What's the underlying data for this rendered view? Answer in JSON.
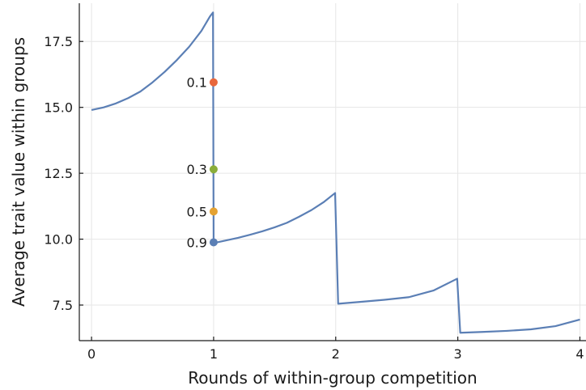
{
  "chart_data": {
    "type": "line",
    "xlabel": "Rounds of within-group competition",
    "ylabel": "Average trait value within groups",
    "xlim": [
      -0.1,
      4.05
    ],
    "ylim": [
      6.15,
      18.95
    ],
    "xticks": [
      0,
      1,
      2,
      3,
      4
    ],
    "xtick_labels": [
      "0",
      "1",
      "2",
      "3",
      "4"
    ],
    "yticks": [
      7.5,
      10.0,
      12.5,
      15.0,
      17.5
    ],
    "ytick_labels": [
      "7.5",
      "10.0",
      "12.5",
      "15.0",
      "17.5"
    ],
    "grid": true,
    "series": [
      {
        "color": "#5b7fb5",
        "points": [
          [
            0.0,
            14.9
          ],
          [
            0.1,
            15.0
          ],
          [
            0.2,
            15.15
          ],
          [
            0.3,
            15.35
          ],
          [
            0.4,
            15.6
          ],
          [
            0.5,
            15.95
          ],
          [
            0.6,
            16.35
          ],
          [
            0.7,
            16.8
          ],
          [
            0.8,
            17.3
          ],
          [
            0.9,
            17.9
          ],
          [
            0.97,
            18.45
          ],
          [
            0.995,
            18.6
          ],
          [
            1.0,
            9.85
          ],
          [
            1.1,
            9.95
          ],
          [
            1.2,
            10.05
          ],
          [
            1.3,
            10.17
          ],
          [
            1.4,
            10.3
          ],
          [
            1.5,
            10.45
          ],
          [
            1.6,
            10.62
          ],
          [
            1.7,
            10.85
          ],
          [
            1.8,
            11.1
          ],
          [
            1.9,
            11.4
          ],
          [
            1.995,
            11.75
          ],
          [
            2.02,
            7.55
          ],
          [
            2.2,
            7.62
          ],
          [
            2.4,
            7.7
          ],
          [
            2.6,
            7.8
          ],
          [
            2.8,
            8.05
          ],
          [
            2.995,
            8.5
          ],
          [
            3.02,
            6.45
          ],
          [
            3.2,
            6.48
          ],
          [
            3.4,
            6.52
          ],
          [
            3.6,
            6.58
          ],
          [
            3.8,
            6.7
          ],
          [
            4.0,
            6.95
          ]
        ]
      }
    ],
    "annotated_points": [
      {
        "label": "0.1",
        "x": 1.0,
        "y": 15.95,
        "color": "#e8673c"
      },
      {
        "label": "0.3",
        "x": 1.0,
        "y": 12.65,
        "color": "#8aad3a"
      },
      {
        "label": "0.5",
        "x": 1.0,
        "y": 11.05,
        "color": "#e4a232"
      },
      {
        "label": "0.9",
        "x": 1.0,
        "y": 9.88,
        "color": "#5b7fb5"
      }
    ]
  }
}
